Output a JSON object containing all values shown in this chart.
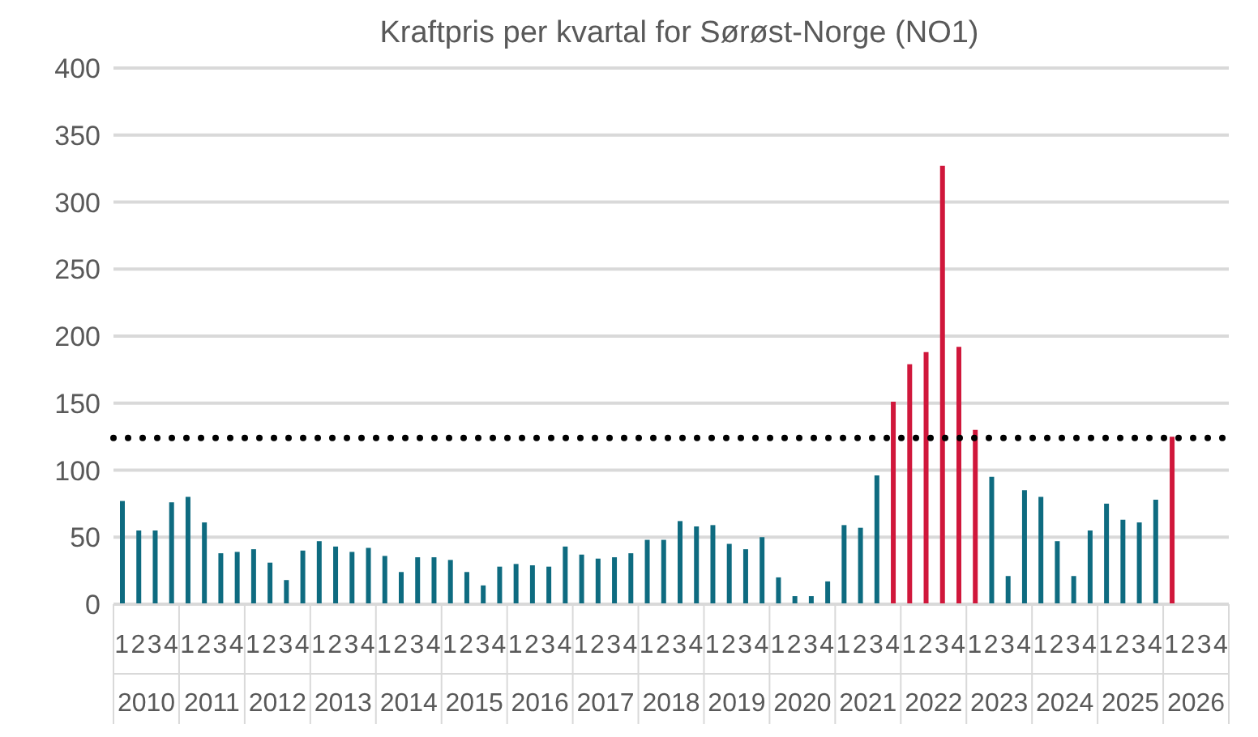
{
  "chart_data": {
    "type": "bar",
    "title": "Kraftpris per kvartal for Sørøst-Norge (NO1)",
    "categories": [
      "1",
      "2",
      "3",
      "4",
      "1",
      "2",
      "3",
      "4",
      "1",
      "2",
      "3",
      "4",
      "1",
      "2",
      "3",
      "4",
      "1",
      "2",
      "3",
      "4",
      "1",
      "2",
      "3",
      "4",
      "1",
      "2",
      "3",
      "4",
      "1",
      "2",
      "3",
      "4",
      "1",
      "2",
      "3",
      "4",
      "1",
      "2",
      "3",
      "4",
      "1",
      "2",
      "3",
      "4",
      "1",
      "2",
      "3",
      "4",
      "1",
      "2",
      "3",
      "4",
      "1",
      "2",
      "3",
      "4",
      "1",
      "2",
      "3",
      "4",
      "1",
      "2",
      "3",
      "4",
      "1",
      "2",
      "3",
      "4"
    ],
    "annotations": [
      "2010",
      "2011",
      "2012",
      "2013",
      "2014",
      "2015",
      "2016",
      "2017",
      "2018",
      "2019",
      "2020",
      "2021",
      "2022",
      "2023",
      "2024",
      "2025",
      "2026"
    ],
    "values": [
      77,
      55,
      55,
      76,
      80,
      61,
      38,
      39,
      41,
      31,
      18,
      40,
      47,
      43,
      39,
      42,
      36,
      24,
      35,
      35,
      33,
      24,
      14,
      28,
      30,
      29,
      28,
      43,
      37,
      34,
      35,
      38,
      48,
      48,
      62,
      58,
      59,
      45,
      41,
      50,
      20,
      6,
      6,
      17,
      59,
      57,
      96,
      151,
      179,
      188,
      327,
      192,
      130,
      95,
      21,
      85,
      80,
      47,
      21,
      55,
      75,
      63,
      61,
      78,
      125,
      null,
      null,
      null
    ],
    "colors": [
      "#0e6b80",
      "#0e6b80",
      "#0e6b80",
      "#0e6b80",
      "#0e6b80",
      "#0e6b80",
      "#0e6b80",
      "#0e6b80",
      "#0e6b80",
      "#0e6b80",
      "#0e6b80",
      "#0e6b80",
      "#0e6b80",
      "#0e6b80",
      "#0e6b80",
      "#0e6b80",
      "#0e6b80",
      "#0e6b80",
      "#0e6b80",
      "#0e6b80",
      "#0e6b80",
      "#0e6b80",
      "#0e6b80",
      "#0e6b80",
      "#0e6b80",
      "#0e6b80",
      "#0e6b80",
      "#0e6b80",
      "#0e6b80",
      "#0e6b80",
      "#0e6b80",
      "#0e6b80",
      "#0e6b80",
      "#0e6b80",
      "#0e6b80",
      "#0e6b80",
      "#0e6b80",
      "#0e6b80",
      "#0e6b80",
      "#0e6b80",
      "#0e6b80",
      "#0e6b80",
      "#0e6b80",
      "#0e6b80",
      "#0e6b80",
      "#0e6b80",
      "#0e6b80",
      "#d0173b",
      "#d0173b",
      "#d0173b",
      "#d0173b",
      "#d0173b",
      "#d0173b",
      "#0e6b80",
      "#0e6b80",
      "#0e6b80",
      "#0e6b80",
      "#0e6b80",
      "#0e6b80",
      "#0e6b80",
      "#0e6b80",
      "#0e6b80",
      "#0e6b80",
      "#0e6b80",
      "#d0173b",
      "#0e6b80",
      "#0e6b80",
      "#0e6b80"
    ],
    "ylim": [
      0,
      400
    ],
    "yticks": [
      0,
      50,
      100,
      150,
      200,
      250,
      300,
      350,
      400
    ],
    "grid": "y",
    "ref_lines": [
      {
        "axis": "y",
        "value": 124,
        "color": "#000000",
        "line_style": "dotted"
      }
    ]
  }
}
